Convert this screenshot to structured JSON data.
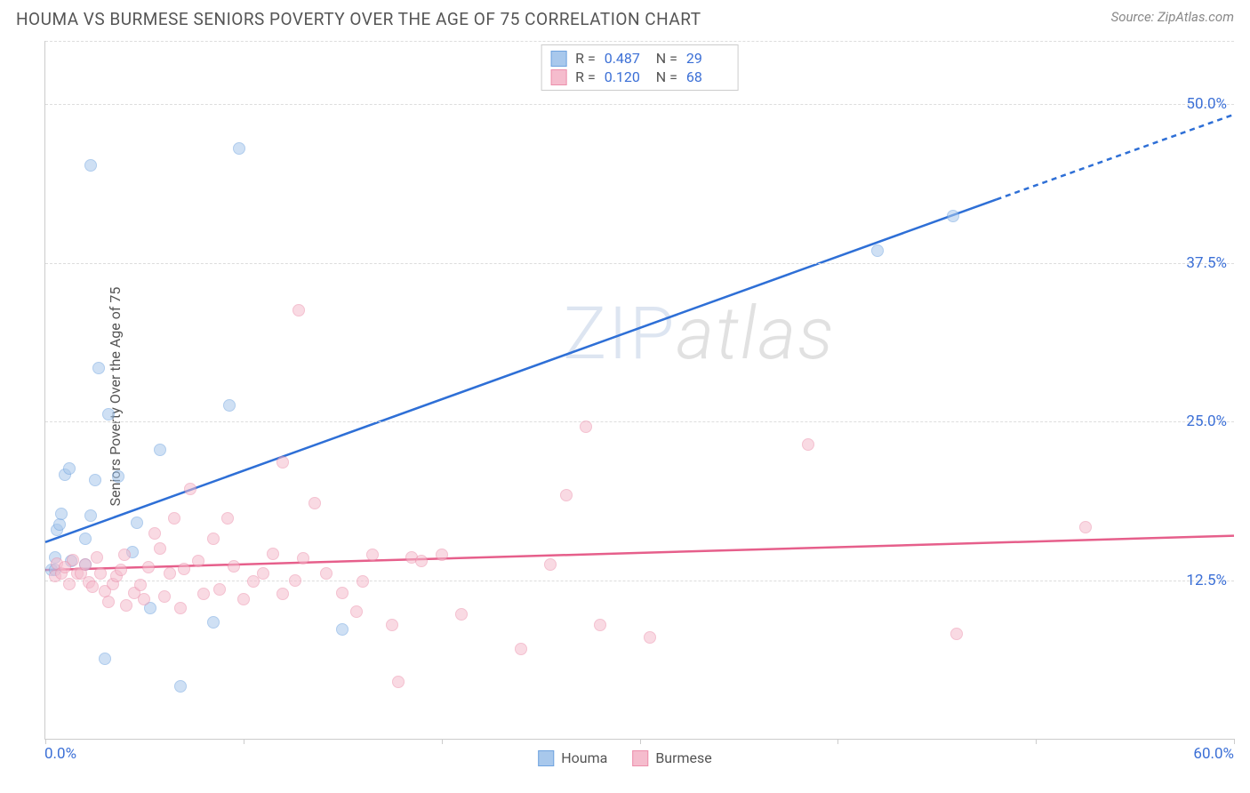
{
  "title": "HOUMA VS BURMESE SENIORS POVERTY OVER THE AGE OF 75 CORRELATION CHART",
  "source": "Source: ZipAtlas.com",
  "y_axis_label": "Seniors Poverty Over the Age of 75",
  "watermark": {
    "part1": "ZIP",
    "part2": "atlas"
  },
  "chart": {
    "type": "scatter",
    "xlim": [
      0,
      60
    ],
    "ylim": [
      0,
      55
    ],
    "background_color": "#ffffff",
    "grid_color": "#dddddd",
    "axis_color": "#cccccc",
    "text_color": "#555555",
    "value_color": "#3b6fd6",
    "y_ticks": [
      12.5,
      25.0,
      37.5,
      50.0
    ],
    "y_tick_labels": [
      "12.5%",
      "25.0%",
      "37.5%",
      "50.0%"
    ],
    "x_ticks": [
      0,
      10,
      20,
      30,
      40,
      50,
      60
    ],
    "x_min_label": "0.0%",
    "x_max_label": "60.0%",
    "point_radius": 7,
    "point_opacity": 0.55,
    "line_width": 2.5,
    "series": [
      {
        "name": "Houma",
        "color_fill": "#a8c8ec",
        "color_stroke": "#6fa3df",
        "line_color": "#2e6fd6",
        "R": "0.487",
        "N": "29",
        "trend": {
          "x1": 0,
          "y1": 15.5,
          "x2": 48,
          "y2": 42.5,
          "dash_x1": 48,
          "dash_y1": 42.5,
          "dash_x2": 60,
          "dash_y2": 49.2
        },
        "points": [
          [
            0.3,
            13.3
          ],
          [
            0.5,
            13.3
          ],
          [
            0.5,
            14.3
          ],
          [
            0.6,
            16.5
          ],
          [
            0.7,
            16.9
          ],
          [
            0.8,
            17.7
          ],
          [
            1.0,
            20.8
          ],
          [
            1.2,
            21.3
          ],
          [
            2.3,
            45.2
          ],
          [
            1.3,
            14.0
          ],
          [
            2.0,
            13.7
          ],
          [
            2.0,
            15.8
          ],
          [
            2.3,
            17.6
          ],
          [
            2.5,
            20.4
          ],
          [
            2.7,
            29.2
          ],
          [
            3.2,
            25.6
          ],
          [
            3.0,
            6.3
          ],
          [
            3.7,
            20.7
          ],
          [
            4.4,
            14.7
          ],
          [
            4.6,
            17.0
          ],
          [
            5.3,
            10.3
          ],
          [
            5.8,
            22.8
          ],
          [
            6.8,
            4.1
          ],
          [
            8.5,
            9.2
          ],
          [
            9.3,
            26.3
          ],
          [
            9.8,
            46.5
          ],
          [
            15.0,
            8.6
          ],
          [
            42.0,
            38.5
          ],
          [
            45.8,
            41.2
          ]
        ]
      },
      {
        "name": "Burmese",
        "color_fill": "#f5bccd",
        "color_stroke": "#ec8fab",
        "line_color": "#e65f8b",
        "R": "0.120",
        "N": "68",
        "trend": {
          "x1": 0,
          "y1": 13.3,
          "x2": 60,
          "y2": 16.0
        },
        "points": [
          [
            0.5,
            12.8
          ],
          [
            0.6,
            13.8
          ],
          [
            0.8,
            13.0
          ],
          [
            1.0,
            13.5
          ],
          [
            1.2,
            12.2
          ],
          [
            1.4,
            14.1
          ],
          [
            1.6,
            13.0
          ],
          [
            1.8,
            13.0
          ],
          [
            2.0,
            13.7
          ],
          [
            2.2,
            12.3
          ],
          [
            2.4,
            12.0
          ],
          [
            2.6,
            14.3
          ],
          [
            2.8,
            13.0
          ],
          [
            3.0,
            11.6
          ],
          [
            3.2,
            10.8
          ],
          [
            3.4,
            12.2
          ],
          [
            3.6,
            12.8
          ],
          [
            3.8,
            13.3
          ],
          [
            4.0,
            14.5
          ],
          [
            4.1,
            10.5
          ],
          [
            4.5,
            11.5
          ],
          [
            4.8,
            12.1
          ],
          [
            5.0,
            11.0
          ],
          [
            5.2,
            13.5
          ],
          [
            5.5,
            16.2
          ],
          [
            5.8,
            15.0
          ],
          [
            6.0,
            11.2
          ],
          [
            6.3,
            13.0
          ],
          [
            6.5,
            17.4
          ],
          [
            6.8,
            10.3
          ],
          [
            7.0,
            13.4
          ],
          [
            7.3,
            19.7
          ],
          [
            7.7,
            14.0
          ],
          [
            8.0,
            11.4
          ],
          [
            8.5,
            15.8
          ],
          [
            8.8,
            11.8
          ],
          [
            9.2,
            17.4
          ],
          [
            9.5,
            13.6
          ],
          [
            10.0,
            11.0
          ],
          [
            10.5,
            12.4
          ],
          [
            11.0,
            13.0
          ],
          [
            11.5,
            14.6
          ],
          [
            12.0,
            11.4
          ],
          [
            12.0,
            21.8
          ],
          [
            12.6,
            12.5
          ],
          [
            12.8,
            33.8
          ],
          [
            13.0,
            14.2
          ],
          [
            13.6,
            18.6
          ],
          [
            14.2,
            13.0
          ],
          [
            15.0,
            11.5
          ],
          [
            15.7,
            10.0
          ],
          [
            16.0,
            12.4
          ],
          [
            16.5,
            14.5
          ],
          [
            17.5,
            9.0
          ],
          [
            17.8,
            4.5
          ],
          [
            18.5,
            14.3
          ],
          [
            20.0,
            14.5
          ],
          [
            21.0,
            9.8
          ],
          [
            24.0,
            7.1
          ],
          [
            25.5,
            13.7
          ],
          [
            26.3,
            19.2
          ],
          [
            27.3,
            24.6
          ],
          [
            28.0,
            9.0
          ],
          [
            30.5,
            8.0
          ],
          [
            38.5,
            23.2
          ],
          [
            46.0,
            8.3
          ],
          [
            52.5,
            16.7
          ],
          [
            19.0,
            14.0
          ]
        ]
      }
    ]
  },
  "legend_bottom": [
    {
      "label": "Houma",
      "fill": "#a8c8ec",
      "stroke": "#6fa3df"
    },
    {
      "label": "Burmese",
      "fill": "#f5bccd",
      "stroke": "#ec8fab"
    }
  ]
}
